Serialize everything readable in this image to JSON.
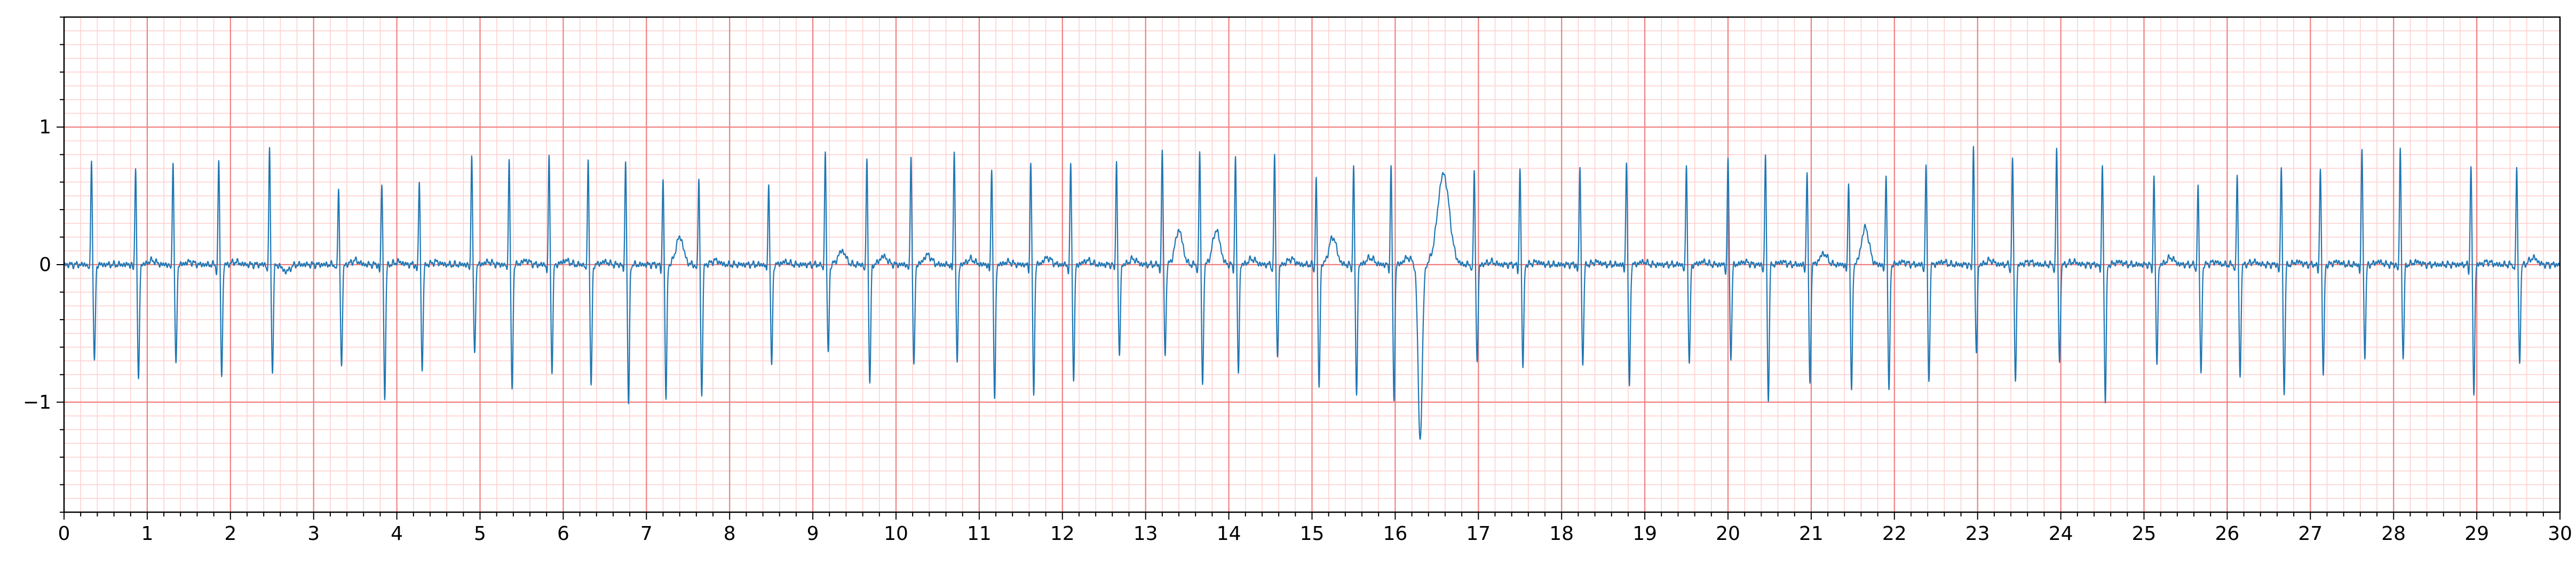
{
  "chart_data": {
    "type": "line",
    "title": "",
    "xlabel": "",
    "ylabel": "",
    "xlim": [
      0,
      30
    ],
    "ylim": [
      -1.8,
      1.8
    ],
    "x_ticks": [
      0,
      1,
      2,
      3,
      4,
      5,
      6,
      7,
      8,
      9,
      10,
      11,
      12,
      13,
      14,
      15,
      16,
      17,
      18,
      19,
      20,
      21,
      22,
      23,
      24,
      25,
      26,
      27,
      28,
      29,
      30
    ],
    "x_tick_labels": [
      "0",
      "1",
      "2",
      "3",
      "4",
      "5",
      "6",
      "7",
      "8",
      "9",
      "10",
      "11",
      "12",
      "13",
      "14",
      "15",
      "16",
      "17",
      "18",
      "19",
      "20",
      "21",
      "22",
      "23",
      "24",
      "25",
      "26",
      "27",
      "28",
      "29",
      "30"
    ],
    "y_ticks": [
      -1,
      0,
      1
    ],
    "y_tick_labels": [
      "−1",
      "0",
      "1"
    ],
    "grid": {
      "major": true,
      "minor": true,
      "major_color": "#f08080",
      "minor_color": "#ffd0d0",
      "x_major_step": 1,
      "x_minor_step": 0.2,
      "y_major_step": 1,
      "y_minor_step": 0.1
    },
    "series_color": "#1f77b4",
    "series": [
      {
        "beats": [
          {
            "t": 0.33,
            "r": 0.76,
            "s": -0.72,
            "p": 0.0,
            "tw": 0.0
          },
          {
            "t": 0.86,
            "r": 0.72,
            "s": -0.85,
            "p": 0.0,
            "tw": 0.03
          },
          {
            "t": 1.31,
            "r": 0.75,
            "s": -0.74,
            "p": 0.0,
            "tw": 0.02
          },
          {
            "t": 1.86,
            "r": 0.76,
            "s": -0.8,
            "p": 0.0,
            "tw": 0.02
          },
          {
            "t": 2.47,
            "r": 0.83,
            "s": -0.78,
            "p": 0.0,
            "tw": -0.05
          },
          {
            "t": 3.3,
            "r": 0.55,
            "s": -0.75,
            "p": 0.0,
            "tw": 0.03
          },
          {
            "t": 3.82,
            "r": 0.6,
            "s": -0.97,
            "p": 0.0,
            "tw": 0.02
          },
          {
            "t": 4.27,
            "r": 0.62,
            "s": -0.78,
            "p": 0.0,
            "tw": 0.02
          },
          {
            "t": 4.9,
            "r": 0.8,
            "s": -0.66,
            "p": 0.0,
            "tw": 0.02
          },
          {
            "t": 5.35,
            "r": 0.77,
            "s": -0.92,
            "p": 0.0,
            "tw": 0.03
          },
          {
            "t": 5.83,
            "r": 0.78,
            "s": -0.77,
            "p": 0.0,
            "tw": 0.03
          },
          {
            "t": 6.3,
            "r": 0.76,
            "s": -0.89,
            "p": 0.0,
            "tw": 0.02
          },
          {
            "t": 6.75,
            "r": 0.75,
            "s": -1.01,
            "p": 0.0,
            "tw": 0.0
          },
          {
            "t": 7.2,
            "r": 0.63,
            "s": -0.97,
            "p": 0.0,
            "tw": 0.2
          },
          {
            "t": 7.63,
            "r": 0.63,
            "s": -0.97,
            "p": 0.0,
            "tw": 0.03
          },
          {
            "t": 8.47,
            "r": 0.59,
            "s": -0.74,
            "p": 0.0,
            "tw": 0.02
          },
          {
            "t": 9.15,
            "r": 0.82,
            "s": -0.65,
            "p": 0.0,
            "tw": 0.1
          },
          {
            "t": 9.65,
            "r": 0.76,
            "s": -0.87,
            "p": 0.0,
            "tw": 0.06
          },
          {
            "t": 10.18,
            "r": 0.8,
            "s": -0.75,
            "p": 0.0,
            "tw": 0.07
          },
          {
            "t": 10.7,
            "r": 0.84,
            "s": -0.71,
            "p": 0.0,
            "tw": 0.04
          },
          {
            "t": 11.15,
            "r": 0.72,
            "s": -0.98,
            "p": 0.0,
            "tw": 0.02
          },
          {
            "t": 11.62,
            "r": 0.75,
            "s": -0.94,
            "p": 0.0,
            "tw": 0.05
          },
          {
            "t": 12.1,
            "r": 0.74,
            "s": -0.83,
            "p": 0.0,
            "tw": 0.03
          },
          {
            "t": 12.65,
            "r": 0.75,
            "s": -0.67,
            "p": 0.0,
            "tw": 0.04
          },
          {
            "t": 13.2,
            "r": 0.85,
            "s": -0.66,
            "p": 0.0,
            "tw": 0.25
          },
          {
            "t": 13.65,
            "r": 0.83,
            "s": -0.88,
            "p": 0.0,
            "tw": 0.25
          },
          {
            "t": 14.08,
            "r": 0.78,
            "s": -0.78,
            "p": 0.0,
            "tw": 0.04
          },
          {
            "t": 14.55,
            "r": 0.78,
            "s": -0.67,
            "p": 0.0,
            "tw": 0.04
          },
          {
            "t": 15.05,
            "r": 0.63,
            "s": -0.9,
            "p": 0.0,
            "tw": 0.2
          },
          {
            "t": 15.5,
            "r": 0.71,
            "s": -0.95,
            "p": 0.0,
            "tw": 0.05
          },
          {
            "t": 15.95,
            "r": 0.72,
            "s": -0.98,
            "p": 0.0,
            "tw": 0.05
          },
          {
            "t": 16.3,
            "r": -0.3,
            "s": -1.28,
            "p": 0.0,
            "tw": 0.66
          },
          {
            "t": 16.95,
            "r": 0.68,
            "s": -0.72,
            "p": 0.0,
            "tw": 0.02
          },
          {
            "t": 17.5,
            "r": 0.71,
            "s": -0.74,
            "p": 0.0,
            "tw": 0.02
          },
          {
            "t": 18.22,
            "r": 0.72,
            "s": -0.73,
            "p": 0.0,
            "tw": 0.02
          },
          {
            "t": 18.78,
            "r": 0.77,
            "s": -0.89,
            "p": 0.0,
            "tw": 0.02
          },
          {
            "t": 19.5,
            "r": 0.72,
            "s": -0.73,
            "p": 0.0,
            "tw": 0.02
          },
          {
            "t": 20.0,
            "r": 0.77,
            "s": -0.68,
            "p": 0.0,
            "tw": 0.02
          },
          {
            "t": 20.45,
            "r": 0.79,
            "s": -0.99,
            "p": 0.0,
            "tw": 0.02
          },
          {
            "t": 20.95,
            "r": 0.69,
            "s": -0.87,
            "p": 0.0,
            "tw": 0.08
          },
          {
            "t": 21.45,
            "r": 0.62,
            "s": -0.92,
            "p": 0.0,
            "tw": 0.27
          },
          {
            "t": 21.9,
            "r": 0.67,
            "s": -0.93,
            "p": 0.0,
            "tw": 0.02
          },
          {
            "t": 22.38,
            "r": 0.72,
            "s": -0.85,
            "p": 0.0,
            "tw": 0.02
          },
          {
            "t": 22.95,
            "r": 0.86,
            "s": -0.65,
            "p": 0.0,
            "tw": 0.03
          },
          {
            "t": 23.42,
            "r": 0.76,
            "s": -0.85,
            "p": 0.0,
            "tw": 0.02
          },
          {
            "t": 23.95,
            "r": 0.85,
            "s": -0.72,
            "p": 0.0,
            "tw": 0.02
          },
          {
            "t": 24.5,
            "r": 0.72,
            "s": -0.99,
            "p": 0.0,
            "tw": 0.02
          },
          {
            "t": 25.12,
            "r": 0.64,
            "s": -0.72,
            "p": 0.0,
            "tw": 0.05
          },
          {
            "t": 25.65,
            "r": 0.57,
            "s": -0.8,
            "p": 0.0,
            "tw": 0.02
          },
          {
            "t": 26.12,
            "r": 0.65,
            "s": -0.83,
            "p": 0.0,
            "tw": 0.02
          },
          {
            "t": 26.65,
            "r": 0.71,
            "s": -0.94,
            "p": 0.0,
            "tw": 0.02
          },
          {
            "t": 27.12,
            "r": 0.71,
            "s": -0.8,
            "p": 0.0,
            "tw": 0.02
          },
          {
            "t": 27.62,
            "r": 0.84,
            "s": -0.66,
            "p": 0.0,
            "tw": 0.02
          },
          {
            "t": 28.08,
            "r": 0.84,
            "s": -0.69,
            "p": 0.0,
            "tw": 0.02
          },
          {
            "t": 28.93,
            "r": 0.73,
            "s": -0.94,
            "p": 0.0,
            "tw": 0.02
          },
          {
            "t": 29.48,
            "r": 0.7,
            "s": -0.72,
            "p": 0.0,
            "tw": 0.05
          }
        ]
      }
    ]
  }
}
